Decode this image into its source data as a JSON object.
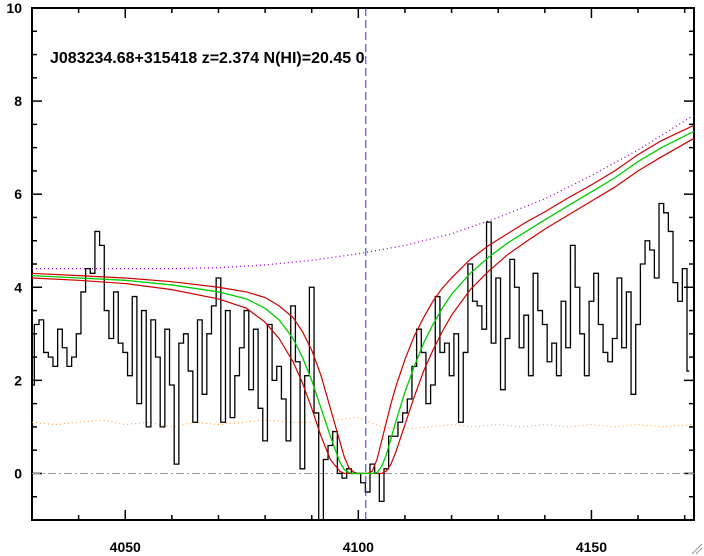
{
  "chart_data": {
    "type": "line",
    "title": "J083234.68+315418 z=2.374 N(HI)=20.45 0",
    "xlabel": "",
    "ylabel": "",
    "xlim": [
      4030,
      4172
    ],
    "ylim": [
      -1,
      10
    ],
    "x_ticks": [
      4050,
      4100,
      4150
    ],
    "y_ticks": [
      0,
      2,
      4,
      6,
      8,
      10
    ],
    "absorber_center_x": 4101.6,
    "colors": {
      "flux": "#000000",
      "model": "#00cc00",
      "model_bounds": "#cc0000",
      "continuum": "#9900cc",
      "error": "#ff9933",
      "zero": "#999999",
      "center": "#3333cc"
    },
    "flux": {
      "x": [
        4030,
        4031,
        4032,
        4033,
        4034,
        4035,
        4036,
        4037,
        4038,
        4039,
        4040,
        4041,
        4042,
        4043,
        4044,
        4045,
        4046,
        4047,
        4048,
        4049,
        4050,
        4051,
        4052,
        4053,
        4054,
        4055,
        4056,
        4057,
        4058,
        4059,
        4060,
        4061,
        4062,
        4063,
        4064,
        4065,
        4066,
        4067,
        4068,
        4069,
        4070,
        4071,
        4072,
        4073,
        4074,
        4075,
        4076,
        4077,
        4078,
        4079,
        4080,
        4081,
        4082,
        4083,
        4084,
        4085,
        4086,
        4087,
        4088,
        4089,
        4090,
        4091,
        4092,
        4093,
        4094,
        4095,
        4096,
        4097,
        4098,
        4099,
        4100,
        4101,
        4102,
        4103,
        4104,
        4105,
        4106,
        4107,
        4108,
        4109,
        4110,
        4111,
        4112,
        4113,
        4114,
        4115,
        4116,
        4117,
        4118,
        4119,
        4120,
        4121,
        4122,
        4123,
        4124,
        4125,
        4126,
        4127,
        4128,
        4129,
        4130,
        4131,
        4132,
        4133,
        4134,
        4135,
        4136,
        4137,
        4138,
        4139,
        4140,
        4141,
        4142,
        4143,
        4144,
        4145,
        4146,
        4147,
        4148,
        4149,
        4150,
        4151,
        4152,
        4153,
        4154,
        4155,
        4156,
        4157,
        4158,
        4159,
        4160,
        4161,
        4162,
        4163,
        4164,
        4165,
        4166,
        4167,
        4168,
        4169,
        4170,
        4171
      ],
      "y": [
        1.9,
        3.2,
        3.3,
        2.6,
        2.5,
        2.3,
        3.1,
        2.7,
        2.3,
        2.5,
        3.0,
        3.9,
        4.4,
        4.3,
        5.2,
        4.9,
        3.5,
        2.9,
        3.9,
        2.8,
        2.6,
        2.1,
        3.8,
        1.5,
        3.5,
        1.0,
        3.3,
        2.5,
        1.0,
        3.1,
        1.9,
        0.2,
        2.8,
        3.0,
        2.2,
        1.1,
        3.3,
        1.7,
        3.0,
        3.6,
        4.2,
        1.1,
        3.5,
        1.2,
        2.1,
        2.7,
        3.5,
        1.8,
        3.1,
        1.4,
        0.7,
        3.2,
        2.0,
        2.3,
        1.6,
        0.7,
        3.6,
        2.4,
        0.1,
        2.1,
        4.0,
        1.3,
        -1.0,
        0.3,
        0.6,
        0.9,
        0.0,
        -0.1,
        0.1,
        0.0,
        0.0,
        -0.2,
        -0.4,
        0.2,
        0.0,
        -0.6,
        0.1,
        0.8,
        0.8,
        1.1,
        1.3,
        1.6,
        2.3,
        3.1,
        2.6,
        1.5,
        1.9,
        3.8,
        2.6,
        2.8,
        2.1,
        3.0,
        1.1,
        2.6,
        4.5,
        3.7,
        3.6,
        3.1,
        5.4,
        2.8,
        4.2,
        1.8,
        2.9,
        4.6,
        4.0,
        2.7,
        3.4,
        2.1,
        4.3,
        3.5,
        3.2,
        2.4,
        2.8,
        2.1,
        3.7,
        2.7,
        4.9,
        4.0,
        3.0,
        2.1,
        3.7,
        4.3,
        3.2,
        2.6,
        2.4,
        2.9,
        4.2,
        2.7,
        3.9,
        1.7,
        3.2,
        4.5,
        5.0,
        4.8,
        4.2,
        5.8,
        5.6,
        5.2,
        4.1,
        3.7,
        4.4,
        2.2
      ]
    },
    "model": {
      "x": [
        4030,
        4040,
        4050,
        4060,
        4070,
        4076,
        4080,
        4083,
        4086,
        4088,
        4090,
        4092,
        4094,
        4096,
        4097,
        4098,
        4099,
        4100,
        4101,
        4102,
        4103,
        4104,
        4105,
        4106,
        4107,
        4108,
        4110,
        4112,
        4114,
        4116,
        4118,
        4120,
        4124,
        4128,
        4132,
        4136,
        4140,
        4145,
        4150,
        4155,
        4160,
        4165,
        4172
      ],
      "y": [
        4.25,
        4.2,
        4.15,
        4.05,
        3.9,
        3.75,
        3.55,
        3.3,
        2.9,
        2.5,
        2.0,
        1.4,
        0.8,
        0.25,
        0.08,
        0.02,
        0.0,
        0.0,
        0.0,
        0.0,
        0.0,
        0.02,
        0.15,
        0.4,
        0.75,
        1.1,
        1.75,
        2.3,
        2.8,
        3.2,
        3.55,
        3.85,
        4.3,
        4.65,
        4.95,
        5.2,
        5.45,
        5.75,
        6.05,
        6.35,
        6.7,
        7.0,
        7.35
      ]
    },
    "model_upper": {
      "x": [
        4030,
        4040,
        4050,
        4060,
        4070,
        4076,
        4080,
        4083,
        4086,
        4088,
        4090,
        4092,
        4094,
        4096,
        4097,
        4098,
        4099,
        4100,
        4101,
        4102,
        4103,
        4104,
        4105,
        4106,
        4107,
        4108,
        4110,
        4112,
        4114,
        4116,
        4118,
        4120,
        4124,
        4128,
        4132,
        4136,
        4140,
        4145,
        4150,
        4155,
        4160,
        4165,
        4172
      ],
      "y": [
        4.3,
        4.25,
        4.2,
        4.12,
        4.0,
        3.9,
        3.78,
        3.6,
        3.35,
        3.05,
        2.65,
        2.1,
        1.4,
        0.7,
        0.35,
        0.12,
        0.03,
        0.0,
        0.0,
        0.0,
        0.05,
        0.3,
        0.7,
        1.1,
        1.5,
        1.85,
        2.45,
        2.95,
        3.35,
        3.7,
        3.98,
        4.2,
        4.6,
        4.9,
        5.15,
        5.4,
        5.62,
        5.92,
        6.2,
        6.5,
        6.85,
        7.15,
        7.48
      ]
    },
    "model_lower": {
      "x": [
        4030,
        4040,
        4050,
        4060,
        4070,
        4076,
        4080,
        4083,
        4086,
        4088,
        4090,
        4092,
        4094,
        4096,
        4097,
        4098,
        4099,
        4100,
        4101,
        4102,
        4103,
        4104,
        4105,
        4106,
        4107,
        4108,
        4110,
        4112,
        4114,
        4116,
        4118,
        4120,
        4124,
        4128,
        4132,
        4136,
        4140,
        4145,
        4150,
        4155,
        4160,
        4165,
        4172
      ],
      "y": [
        4.2,
        4.15,
        4.08,
        3.95,
        3.75,
        3.55,
        3.25,
        2.9,
        2.4,
        1.95,
        1.4,
        0.8,
        0.3,
        0.05,
        0.0,
        0.0,
        0.0,
        0.0,
        0.0,
        0.0,
        0.0,
        0.0,
        0.0,
        0.05,
        0.2,
        0.45,
        1.05,
        1.65,
        2.2,
        2.65,
        3.05,
        3.4,
        3.95,
        4.35,
        4.7,
        4.98,
        5.25,
        5.55,
        5.85,
        6.15,
        6.5,
        6.8,
        7.2
      ]
    },
    "continuum": {
      "x": [
        4030,
        4040,
        4050,
        4060,
        4070,
        4080,
        4090,
        4100,
        4110,
        4120,
        4130,
        4140,
        4150,
        4160,
        4172
      ],
      "y": [
        4.4,
        4.4,
        4.4,
        4.4,
        4.42,
        4.48,
        4.58,
        4.72,
        4.9,
        5.15,
        5.5,
        5.9,
        6.4,
        6.95,
        7.7
      ]
    },
    "error": {
      "x": [
        4030,
        4035,
        4040,
        4045,
        4050,
        4055,
        4060,
        4065,
        4070,
        4075,
        4080,
        4085,
        4090,
        4095,
        4100,
        4105,
        4110,
        4115,
        4120,
        4125,
        4130,
        4135,
        4140,
        4145,
        4150,
        4155,
        4160,
        4165,
        4172
      ],
      "y": [
        1.1,
        1.05,
        1.1,
        1.15,
        1.05,
        1.1,
        1.0,
        1.1,
        1.05,
        1.1,
        1.15,
        1.1,
        1.1,
        1.15,
        1.2,
        1.0,
        0.95,
        1.0,
        1.05,
        1.0,
        1.05,
        1.0,
        1.05,
        1.0,
        1.05,
        1.0,
        1.05,
        1.0,
        1.05
      ]
    }
  }
}
